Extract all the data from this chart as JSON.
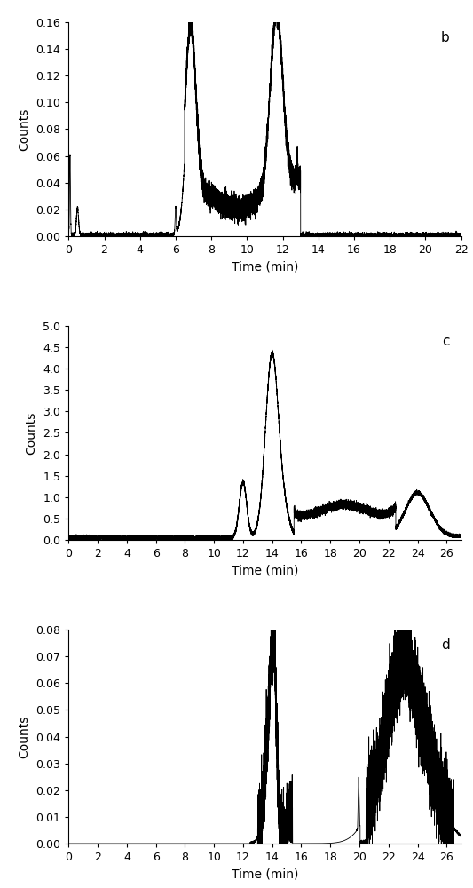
{
  "panel_b": {
    "label": "b",
    "xlim": [
      0,
      22
    ],
    "ylim": [
      0,
      0.16
    ],
    "xticks": [
      0,
      2,
      4,
      6,
      8,
      10,
      12,
      14,
      16,
      18,
      20,
      22
    ],
    "yticks": [
      0,
      0.02,
      0.04,
      0.06,
      0.08,
      0.1,
      0.12,
      0.14,
      0.16
    ],
    "xlabel": "Time (min)",
    "ylabel": "Counts"
  },
  "panel_c": {
    "label": "c",
    "xlim": [
      0,
      27
    ],
    "ylim": [
      0,
      5
    ],
    "xticks": [
      0,
      2,
      4,
      6,
      8,
      10,
      12,
      14,
      16,
      18,
      20,
      22,
      24,
      26
    ],
    "yticks": [
      0,
      0.5,
      1.0,
      1.5,
      2.0,
      2.5,
      3.0,
      3.5,
      4.0,
      4.5,
      5.0
    ],
    "xlabel": "Time (min)",
    "ylabel": "Counts"
  },
  "panel_d": {
    "label": "d",
    "xlim": [
      0,
      27
    ],
    "ylim": [
      0,
      0.08
    ],
    "xticks": [
      0,
      2,
      4,
      6,
      8,
      10,
      12,
      14,
      16,
      18,
      20,
      22,
      24,
      26
    ],
    "yticks": [
      0,
      0.01,
      0.02,
      0.03,
      0.04,
      0.05,
      0.06,
      0.07,
      0.08
    ],
    "xlabel": "Time (min)",
    "ylabel": "Counts"
  },
  "line_color": "#000000",
  "line_width": 0.6,
  "bg_color": "#ffffff",
  "label_fontsize": 10,
  "tick_fontsize": 9
}
